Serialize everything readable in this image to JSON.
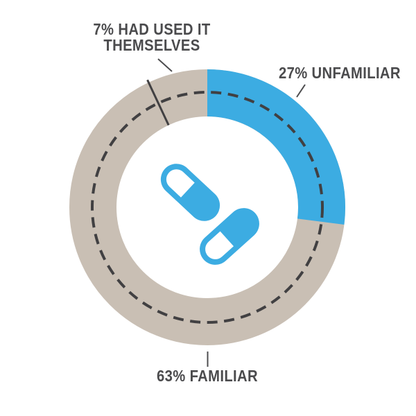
{
  "chart_data": {
    "type": "pie",
    "variant": "donut",
    "start": "top",
    "direction": "clockwise",
    "segments": [
      {
        "name": "unfamiliar",
        "label": "UNFAMILIAR",
        "value": 27,
        "display": "27% UNFAMILIAR",
        "color": "#3CACE2"
      },
      {
        "name": "familiar",
        "label": "FAMILIAR",
        "value": 63,
        "display": "63% FAMILIAR",
        "color": "#C9BFB4"
      },
      {
        "name": "had_used_themselves",
        "label": "HAD USED IT THEMSELVES",
        "value": 7,
        "display": "7% HAD USED IT THEMSELVES",
        "color": "#C9BFB4",
        "divider_tick": true
      }
    ],
    "inner_dashed_ring": true,
    "center_icon": "two-pill-capsule-icons",
    "legend_position": "none",
    "title": ""
  },
  "labels": {
    "had_used": {
      "line1": "7% HAD USED IT",
      "line2": "THEMSELVES"
    },
    "unfamiliar": {
      "text": "27% UNFAMILIAR"
    },
    "familiar": {
      "text": "63% FAMILIAR"
    }
  },
  "icons": {
    "pill_capsule": {
      "name": "pill-capsule-icon",
      "count": 2,
      "color": "#3CACE2",
      "cap_color": "#FFFFFF"
    }
  },
  "colors": {
    "blue": "#3CACE2",
    "tan": "#C9BFB4",
    "dark": "#414042",
    "leader": "#4D4D4F",
    "text": "#4B4B4D",
    "background": "#FFFFFF"
  }
}
